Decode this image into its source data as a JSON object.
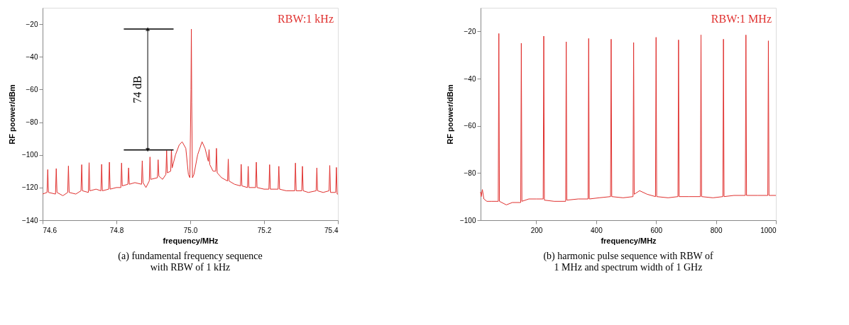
{
  "chart_data": [
    {
      "type": "line",
      "title": "(a) fundamental frequency sequence\nwith RBW of 1 kHz",
      "xlabel": "frequency/MHz",
      "ylabel": "RF poower/dBm",
      "xlim": [
        74.6,
        75.4
      ],
      "xticks": [
        74.6,
        74.8,
        {
          "value": 75,
          "label": "75.0"
        },
        75.2,
        75.4
      ],
      "ylim": [
        -140,
        -10
      ],
      "yticks": [
        -140,
        -120,
        -100,
        -80,
        -60,
        -40,
        -20
      ],
      "grid": false,
      "series": [
        {
          "color": "#e0312f",
          "x": [
            74.6,
            74.612,
            74.614,
            74.616,
            74.635,
            74.637,
            74.639,
            74.655,
            74.668,
            74.67,
            74.672,
            74.69,
            74.704,
            74.706,
            74.708,
            74.724,
            74.726,
            74.728,
            74.745,
            74.758,
            74.76,
            74.762,
            74.779,
            74.781,
            74.783,
            74.8,
            74.812,
            74.814,
            74.816,
            74.831,
            74.833,
            74.835,
            74.85,
            74.868,
            74.87,
            74.872,
            74.88,
            74.889,
            74.891,
            74.893,
            74.911,
            74.913,
            74.915,
            74.925,
            74.934,
            74.936,
            74.938,
            74.947,
            74.949,
            74.951,
            74.96,
            74.97,
            74.978,
            74.988,
            74.995,
            74.999,
            75.002,
            75.003,
            75.004,
            75.006,
            75.01,
            75.02,
            75.032,
            75.04,
            75.049,
            75.051,
            75.053,
            75.062,
            75.069,
            75.071,
            75.073,
            75.085,
            75.101,
            75.103,
            75.105,
            75.12,
            75.136,
            75.138,
            75.14,
            75.155,
            75.157,
            75.159,
            75.177,
            75.179,
            75.181,
            75.2,
            75.213,
            75.215,
            75.217,
            75.238,
            75.24,
            75.242,
            75.26,
            75.283,
            75.285,
            75.287,
            75.302,
            75.304,
            75.306,
            75.32,
            75.341,
            75.343,
            75.345,
            75.36,
            75.376,
            75.378,
            75.38,
            75.394,
            75.396,
            75.398,
            75.4
          ],
          "values": [
            -124,
            -123,
            -109,
            -123,
            -124,
            -108.4,
            -123,
            -125,
            -123,
            -106.8,
            -123,
            -124,
            -122,
            -106,
            -122,
            -123,
            -104.8,
            -122,
            -121,
            -122,
            -105.8,
            -122,
            -121,
            -104.5,
            -121,
            -120,
            -120,
            -105,
            -119,
            -118,
            -108,
            -118,
            -117,
            -118,
            -103.6,
            -117,
            -120,
            -116,
            -101.3,
            -115,
            -114,
            -103,
            -113,
            -115,
            -112,
            -97.4,
            -111,
            -110,
            -96.8,
            -108,
            -100,
            -94,
            -92,
            -96,
            -112,
            -114,
            -60,
            -23,
            -68,
            -114,
            -112,
            -100,
            -92,
            -96,
            -104,
            -96.8,
            -106,
            -110,
            -110,
            -96,
            -111,
            -114,
            -116,
            -102.6,
            -116,
            -118,
            -119,
            -105.8,
            -119,
            -120,
            -107,
            -120,
            -120,
            -104.5,
            -120,
            -121,
            -121,
            -106,
            -121,
            -121,
            -107,
            -121,
            -122,
            -122,
            -105,
            -122,
            -122,
            -107,
            -122,
            -123,
            -122,
            -108,
            -122,
            -123,
            -122,
            -106.5,
            -123,
            -123,
            -107.7,
            -124,
            -124
          ]
        }
      ],
      "ref_lines": [
        {
          "axis": "y",
          "value": -23
        },
        {
          "axis": "y",
          "value": -97
        }
      ],
      "annotations": [
        "RBW:1 kHz",
        "74 dB"
      ]
    },
    {
      "type": "line",
      "title": "(b) harmonic pulse sequence with RBW of\n1 MHz and spectrum width of 1 GHz",
      "xlabel": "frequency/MHz",
      "ylabel": "RF poower/dBm",
      "xlim": [
        14,
        1000
      ],
      "xticks": [
        200,
        400,
        600,
        800,
        1000
      ],
      "ylim": [
        -100,
        -10
      ],
      "yticks": [
        -100,
        -80,
        -60,
        -40,
        -20
      ],
      "grid": false,
      "series": [
        {
          "color": "#e0312f",
          "x": [
            14,
            16,
            20,
            25,
            35,
            50,
            73,
            75,
            77,
            100,
            120,
            148,
            150,
            152,
            175,
            200,
            223,
            225,
            227,
            260,
            298,
            300,
            302,
            340,
            373,
            375,
            377,
            410,
            448,
            450,
            452,
            490,
            523,
            525,
            527,
            545,
            570,
            598,
            600,
            602,
            640,
            673,
            675,
            677,
            710,
            748,
            750,
            752,
            790,
            823,
            825,
            827,
            860,
            898,
            900,
            902,
            940,
            973,
            975,
            977,
            1000
          ],
          "values": [
            -88,
            -90,
            -87,
            -91,
            -92,
            -92,
            -92,
            -20.9,
            -92,
            -93.5,
            -92.5,
            -92.5,
            -25,
            -92,
            -91,
            -91,
            -91,
            -22,
            -91.5,
            -92,
            -92,
            -24.4,
            -91.5,
            -91,
            -91,
            -23,
            -91,
            -90.5,
            -90,
            -23.3,
            -90,
            -90.5,
            -90,
            -24.7,
            -89,
            -87.5,
            -89,
            -90,
            -22.5,
            -90,
            -90.5,
            -90,
            -23.6,
            -90,
            -90,
            -90,
            -21.5,
            -90,
            -90.5,
            -90,
            -23.3,
            -90,
            -89.5,
            -89.5,
            -21.5,
            -89.5,
            -89.5,
            -89.5,
            -24,
            -89.5,
            -89.5
          ]
        }
      ],
      "annotations": [
        "RBW:1 MHz"
      ]
    }
  ]
}
